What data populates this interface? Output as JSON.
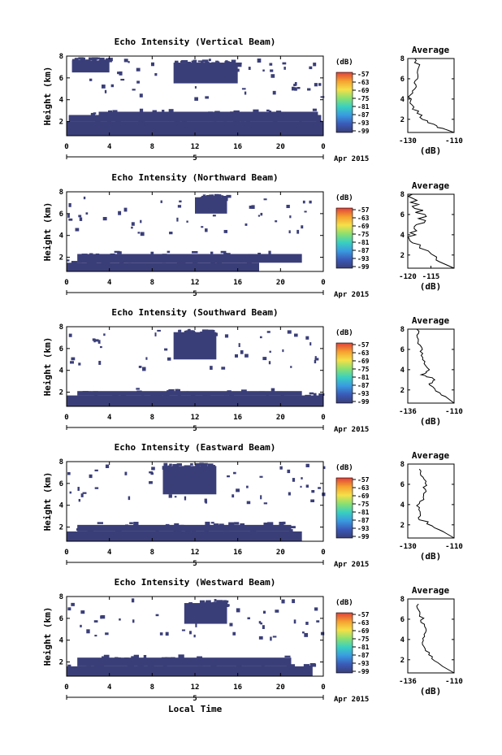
{
  "xlabel": "Local Time",
  "x_ticks": [
    "0",
    "4",
    "8",
    "12",
    "16",
    "20",
    "0"
  ],
  "date_label": "5",
  "date_suffix": "Apr 2015",
  "colorbar": {
    "unit": "(dB)",
    "ticks": [
      "-57",
      "-63",
      "-69",
      "-75",
      "-81",
      "-87",
      "-93",
      "-99"
    ],
    "stops": [
      "#e0403a",
      "#f5a030",
      "#f5e048",
      "#8ce070",
      "#3ad0c0",
      "#3a9ae0",
      "#3a5ab8",
      "#3a3e78"
    ]
  },
  "average_label": "(dB)",
  "average_title": "Average",
  "colors": {
    "echo": "#3a3e78",
    "axis": "#000000"
  },
  "chart_data": [
    {
      "type": "heatmap",
      "title": "Echo Intensity (Vertical Beam)",
      "ylabel": "Height (km)",
      "y_ticks": [
        "8",
        "6",
        "4",
        "2"
      ],
      "xlim": [
        0,
        24
      ],
      "ylim": [
        0.7,
        8
      ],
      "features": [
        {
          "t0": 0,
          "t1": 24,
          "h0": 0.7,
          "h1": 2.0
        },
        {
          "t0": 0.2,
          "t1": 23.8,
          "h0": 2.0,
          "h1": 2.6
        },
        {
          "t0": 3,
          "t1": 23.5,
          "h0": 2.6,
          "h1": 2.9
        },
        {
          "t0": 10,
          "t1": 16,
          "h0": 5.5,
          "h1": 7.4
        },
        {
          "t0": 0.5,
          "t1": 4,
          "h0": 6.5,
          "h1": 7.6
        }
      ],
      "average": {
        "xlim": [
          -130,
          -110
        ],
        "x_ticks": [
          "-130",
          "-110"
        ],
        "y_ticks": [
          "8",
          "6",
          "4",
          "2"
        ],
        "values": [
          {
            "h": 0.7,
            "v": -110
          },
          {
            "h": 1.2,
            "v": -116
          },
          {
            "h": 2,
            "v": -123
          },
          {
            "h": 3,
            "v": -127
          },
          {
            "h": 4,
            "v": -129
          },
          {
            "h": 5,
            "v": -127
          },
          {
            "h": 6,
            "v": -126
          },
          {
            "h": 7,
            "v": -125
          },
          {
            "h": 8,
            "v": -127
          }
        ]
      }
    },
    {
      "type": "heatmap",
      "title": "Echo Intensity (Northward Beam)",
      "ylabel": "Height (km)",
      "y_ticks": [
        "8",
        "6",
        "4",
        "2"
      ],
      "xlim": [
        0,
        24
      ],
      "ylim": [
        0.7,
        8
      ],
      "features": [
        {
          "t0": 0,
          "t1": 18,
          "h0": 0.7,
          "h1": 1.5
        },
        {
          "t0": 1,
          "t1": 22,
          "h0": 1.5,
          "h1": 2.3
        },
        {
          "t0": 12,
          "t1": 15,
          "h0": 6.0,
          "h1": 7.5
        }
      ],
      "average": {
        "xlim": [
          -120,
          -110
        ],
        "x_ticks": [
          "-120",
          "-115"
        ],
        "y_ticks": [
          "8",
          "6",
          "4",
          "2"
        ],
        "values": [
          {
            "h": 0.7,
            "v": -110
          },
          {
            "h": 1.5,
            "v": -114
          },
          {
            "h": 3,
            "v": -118
          },
          {
            "h": 4,
            "v": -119
          },
          {
            "h": 5,
            "v": -117
          },
          {
            "h": 6,
            "v": -117
          },
          {
            "h": 7,
            "v": -118
          },
          {
            "h": 8,
            "v": -119
          }
        ]
      }
    },
    {
      "type": "heatmap",
      "title": "Echo Intensity (Southward Beam)",
      "ylabel": "Height (km)",
      "y_ticks": [
        "8",
        "6",
        "4",
        "2"
      ],
      "xlim": [
        0,
        24
      ],
      "ylim": [
        0.7,
        8
      ],
      "features": [
        {
          "t0": 0,
          "t1": 24,
          "h0": 0.7,
          "h1": 1.7
        },
        {
          "t0": 1,
          "t1": 22,
          "h0": 1.7,
          "h1": 2.1
        },
        {
          "t0": 10,
          "t1": 14,
          "h0": 5.0,
          "h1": 7.5
        }
      ],
      "average": {
        "xlim": [
          -136,
          -110
        ],
        "x_ticks": [
          "-136",
          "-110"
        ],
        "y_ticks": [
          "8",
          "6",
          "4",
          "2"
        ],
        "values": [
          {
            "h": 0.7,
            "v": -110
          },
          {
            "h": 1.5,
            "v": -116
          },
          {
            "h": 2.5,
            "v": -124
          },
          {
            "h": 3,
            "v": -120
          },
          {
            "h": 3.5,
            "v": -128
          },
          {
            "h": 4,
            "v": -124
          },
          {
            "h": 5,
            "v": -127
          },
          {
            "h": 6,
            "v": -128
          },
          {
            "h": 7,
            "v": -130
          },
          {
            "h": 8,
            "v": -131
          }
        ]
      }
    },
    {
      "type": "heatmap",
      "title": "Echo Intensity (Eastward Beam)",
      "ylabel": "Height (km)",
      "y_ticks": [
        "8",
        "6",
        "4",
        "2"
      ],
      "xlim": [
        0,
        24
      ],
      "ylim": [
        0.7,
        8
      ],
      "features": [
        {
          "t0": 0,
          "t1": 22,
          "h0": 0.7,
          "h1": 1.6
        },
        {
          "t0": 1,
          "t1": 21,
          "h0": 1.6,
          "h1": 2.2
        },
        {
          "t0": 9,
          "t1": 14,
          "h0": 5.0,
          "h1": 7.6
        }
      ],
      "average": {
        "xlim": [
          -130,
          -110
        ],
        "x_ticks": [
          "-130",
          "-110"
        ],
        "y_ticks": [
          "8",
          "6",
          "4",
          "2"
        ],
        "values": [
          {
            "h": 0.7,
            "v": -110
          },
          {
            "h": 1.5,
            "v": -116
          },
          {
            "h": 2.5,
            "v": -124
          },
          {
            "h": 3.5,
            "v": -126
          },
          {
            "h": 4.5,
            "v": -124
          },
          {
            "h": 5.5,
            "v": -123
          },
          {
            "h": 6.5,
            "v": -123
          },
          {
            "h": 7.5,
            "v": -125
          }
        ]
      }
    },
    {
      "type": "heatmap",
      "title": "Echo Intensity (Westward Beam)",
      "ylabel": "Height (km)",
      "y_ticks": [
        "8",
        "6",
        "4",
        "2"
      ],
      "xlim": [
        0,
        24
      ],
      "ylim": [
        0.7,
        8
      ],
      "features": [
        {
          "t0": 0,
          "t1": 23,
          "h0": 0.7,
          "h1": 1.6
        },
        {
          "t0": 1,
          "t1": 21,
          "h0": 1.6,
          "h1": 2.4
        },
        {
          "t0": 11,
          "t1": 15,
          "h0": 5.5,
          "h1": 7.4
        }
      ],
      "average": {
        "xlim": [
          -136,
          -110
        ],
        "x_ticks": [
          "-136",
          "-110"
        ],
        "y_ticks": [
          "8",
          "6",
          "4",
          "2"
        ],
        "values": [
          {
            "h": 0.7,
            "v": -110
          },
          {
            "h": 1.5,
            "v": -118
          },
          {
            "h": 2.5,
            "v": -124
          },
          {
            "h": 3.5,
            "v": -128
          },
          {
            "h": 4.5,
            "v": -126
          },
          {
            "h": 5.5,
            "v": -127
          },
          {
            "h": 6.5,
            "v": -129
          },
          {
            "h": 7.5,
            "v": -130
          }
        ]
      }
    }
  ]
}
